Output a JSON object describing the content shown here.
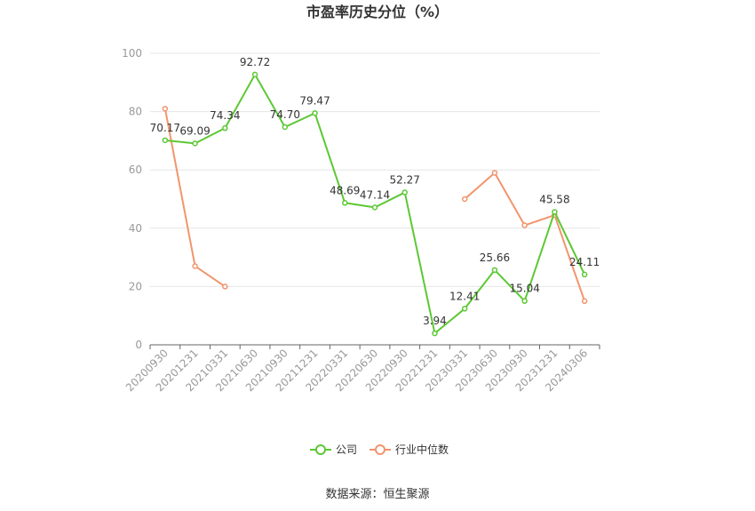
{
  "chart_data": {
    "type": "line",
    "title": "市盈率历史分位（%）",
    "source": "数据来源：恒生聚源",
    "x": [
      "20200930",
      "20201231",
      "20210331",
      "20210630",
      "20210930",
      "20211231",
      "20220331",
      "20220630",
      "20220930",
      "20221231",
      "20230331",
      "20230630",
      "20230930",
      "20231231",
      "20240306"
    ],
    "ylim": [
      0,
      100
    ],
    "yticks": [
      0,
      20,
      40,
      60,
      80,
      100
    ],
    "grid": true,
    "legend_position": "bottom",
    "series": [
      {
        "name": "公司",
        "color": "#5CC834",
        "values": [
          70.17,
          69.09,
          74.34,
          92.72,
          74.7,
          79.47,
          48.69,
          47.14,
          52.27,
          3.94,
          12.41,
          25.66,
          15.04,
          45.58,
          24.11
        ],
        "labels": [
          "70.17",
          "69.09",
          "74.34",
          "92.72",
          "74.70",
          "79.47",
          "48.69",
          "47.14",
          "52.27",
          "3.94",
          "12.41",
          "25.66",
          "15.04",
          "45.58",
          "24.11"
        ]
      },
      {
        "name": "行业中位数",
        "color": "#F2956C",
        "values": [
          81,
          27,
          20,
          null,
          null,
          null,
          null,
          null,
          null,
          null,
          50,
          59,
          41,
          44.5,
          15
        ]
      }
    ]
  }
}
